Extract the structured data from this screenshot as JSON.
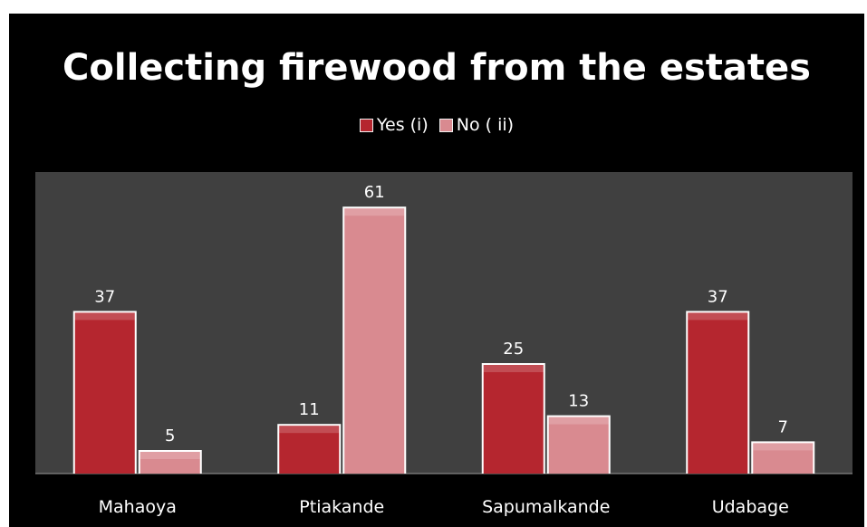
{
  "chart_data": {
    "type": "bar",
    "title": "Collecting firewood from the estates",
    "categories": [
      "Mahaoya",
      "Ptiakande",
      "Sapumalkande",
      "Udabage"
    ],
    "series": [
      {
        "name": "Yes (i)",
        "values": [
          37,
          11,
          25,
          37
        ],
        "color": "#b5262f"
      },
      {
        "name": "No ( ii)",
        "values": [
          5,
          61,
          13,
          7
        ],
        "color": "#d98a90"
      }
    ],
    "xlabel": "",
    "ylabel": "",
    "ylim": [
      0,
      70
    ],
    "grid": false,
    "legend_position": "top"
  },
  "colors": {
    "background": "#000000",
    "plot_area": "#404040",
    "text": "#ffffff"
  }
}
